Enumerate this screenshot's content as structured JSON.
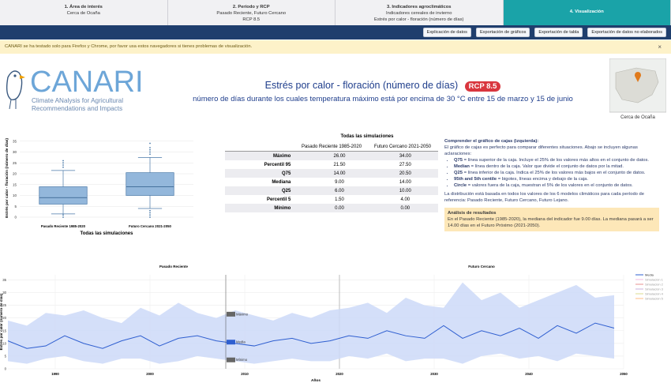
{
  "tabs": [
    {
      "title": "1. Área de interés",
      "lines": [
        "Cerca de Ocaña"
      ]
    },
    {
      "title": "2. Período y RCP",
      "lines": [
        "Pasado Reciente, Futuro Cercano",
        "RCP 8.5"
      ]
    },
    {
      "title": "3. Indicadores agroclimáticos",
      "lines": [
        "Indicadores cereales de invierno",
        "Estrés por calor - floración (número de días)"
      ]
    },
    {
      "title": "4. Visualización",
      "lines": []
    }
  ],
  "toolbar": [
    "Explicación de datos",
    "Exportación de gráficos",
    "Exportación de tabla",
    "Exportación de datos no elaborados"
  ],
  "alert": {
    "text": "CANARI se ha testado solo para Firefox y Chrome, por favor usa estos navegadores si tienes problemas de visualización.",
    "close": "×"
  },
  "logo": {
    "name": "CANARI",
    "tagline": [
      "Climate ANalysis for Agricultural",
      "Recommendations and Impacts"
    ]
  },
  "header": {
    "title": "Estrés por calor - floración (número de días)",
    "badge": "RCP 8.5",
    "subtitle": "número de días durante los cuales temperatura máximo está por encima de 30 °C entre 15 de marzo y 15 de junio"
  },
  "map": {
    "caption": "Cerca de Ocaña"
  },
  "table": {
    "title": "Todas las simulaciones",
    "columns": [
      "Pasado Reciente 1985-2020",
      "Futuro Cercano 2021-2050"
    ],
    "rows": [
      [
        "Máximo",
        "26.00",
        "34.00"
      ],
      [
        "Percentil 95",
        "21.50",
        "27.50"
      ],
      [
        "Q75",
        "14.00",
        "20.50"
      ],
      [
        "Mediana",
        "9.00",
        "14.00"
      ],
      [
        "Q25",
        "6.00",
        "10.00"
      ],
      [
        "Percentil 5",
        "1.50",
        "4.00"
      ],
      [
        "Mínimo",
        "0.00",
        "0.00"
      ]
    ]
  },
  "explanation": {
    "title": "Comprender el gráfico de cajas (izquierda):",
    "intro": "El gráfico de cajas es perfecto para comparar diferentes situaciones. Abajo se incluyen algunas aclaraciones:",
    "items": [
      {
        "term": "Q75",
        "text": " = línea superior de la caja. Incluye el 25% de los valores más altos en el conjunto de datos."
      },
      {
        "term": "Median",
        "text": " = línea dentro de la caja. Valor que divide el conjunto de datos por la mitad."
      },
      {
        "term": "Q25",
        "text": " = línea inferior de la caja. Indica el 25% de los valores más bajos en el conjunto de datos."
      },
      {
        "term": "95th and 5th centile",
        "text": " = bigotes, líneas encima y debajo de la caja."
      },
      {
        "term": "Circle",
        "text": " = valores fuera de la caja, muestran el 5% de los valores en el conjunto de datos."
      }
    ],
    "note": "La distribución está basada en todos los valores de los 6 modelos climáticos para cada período de referencia: Pasado Reciente, Futuro Cercano, Futuro Lejano."
  },
  "analysis": {
    "title": "Análisis de resultados",
    "text": "En el Pasado Reciente (1985-2020), la mediana del indicador fue 9.00 días. La mediana pasará a ser 14.00 días en el Futuro Próximo (2021-2050)."
  },
  "chart_data": [
    {
      "type": "box",
      "ylabel": "Estrés por calor - floración (número de días)",
      "xlabel": "Todas las simulaciones",
      "categories": [
        "Pasado Reciente 1985-2020",
        "Futuro Cercano 2021-2050"
      ],
      "color": "#93b7db",
      "ylim": [
        0,
        36
      ],
      "yticks": [
        0,
        5,
        10,
        15,
        20,
        25,
        30,
        35
      ],
      "grid": true,
      "boxes": [
        {
          "whisker_low": 1.5,
          "q25": 6,
          "median": 9,
          "q75": 14,
          "whisker_high": 21.5,
          "outliers": [
            0,
            1,
            23,
            24,
            25,
            26
          ]
        },
        {
          "whisker_low": 4,
          "q25": 10,
          "median": 14,
          "q75": 20.5,
          "whisker_high": 27.5,
          "outliers": [
            0,
            1,
            2,
            3,
            29,
            30,
            31,
            32,
            34
          ]
        }
      ]
    },
    {
      "type": "line",
      "ylabel": "Estrés por calor (número de días)",
      "xlabel": "Años",
      "xlim": [
        1985,
        2050
      ],
      "xticks": [
        1990,
        2000,
        2010,
        2020,
        2030,
        2040,
        2050
      ],
      "ylim": [
        0,
        37
      ],
      "yticks": [
        0,
        5,
        10,
        15,
        20,
        25,
        30,
        35
      ],
      "grid": true,
      "periods": [
        {
          "name": "Pasado Reciente",
          "range": [
            1985,
            2020
          ]
        },
        {
          "name": "Futuro Cercano",
          "range": [
            2020,
            2050
          ]
        }
      ],
      "x": [
        1985,
        1987,
        1989,
        1991,
        1993,
        1995,
        1997,
        1999,
        2001,
        2003,
        2005,
        2007,
        2009,
        2011,
        2013,
        2015,
        2017,
        2019,
        2021,
        2023,
        2025,
        2027,
        2029,
        2031,
        2033,
        2035,
        2037,
        2039,
        2041,
        2043,
        2045,
        2047,
        2049
      ],
      "series": [
        {
          "name": "Media",
          "color": "#2f5fd0",
          "values": [
            11,
            8,
            9,
            13,
            10,
            8,
            11,
            13,
            9,
            12,
            13,
            11,
            10,
            9,
            11,
            12,
            10,
            11,
            13,
            12,
            15,
            13,
            12,
            17,
            12,
            15,
            13,
            16,
            12,
            17,
            14,
            18,
            16
          ]
        }
      ],
      "range_band": {
        "color": "#cdd9f8",
        "upper": [
          19,
          17,
          22,
          21,
          23,
          20,
          18,
          24,
          21,
          26,
          22,
          20,
          23,
          21,
          19,
          22,
          20,
          23,
          24,
          26,
          22,
          28,
          25,
          24,
          34,
          27,
          30,
          24,
          27,
          30,
          33,
          28,
          29
        ],
        "lower": [
          3,
          2,
          4,
          5,
          3,
          2,
          4,
          4,
          2,
          3,
          5,
          4,
          3,
          2,
          3,
          4,
          3,
          3,
          5,
          4,
          6,
          3,
          4,
          4,
          2,
          5,
          6,
          4,
          5,
          3,
          6,
          5,
          4
        ]
      },
      "hover": {
        "x": 2008,
        "labels": [
          "Máximo",
          "Media",
          "Mínimo"
        ]
      },
      "legend_extra": [
        {
          "name": "Simulación 1",
          "color": "#e377c2"
        },
        {
          "name": "Simulación 2",
          "color": "#d62728"
        },
        {
          "name": "Simulación 3",
          "color": "#9467bd"
        },
        {
          "name": "Simulación 4",
          "color": "#bcbd22"
        },
        {
          "name": "Simulación 5",
          "color": "#ff7f0e"
        }
      ]
    }
  ]
}
